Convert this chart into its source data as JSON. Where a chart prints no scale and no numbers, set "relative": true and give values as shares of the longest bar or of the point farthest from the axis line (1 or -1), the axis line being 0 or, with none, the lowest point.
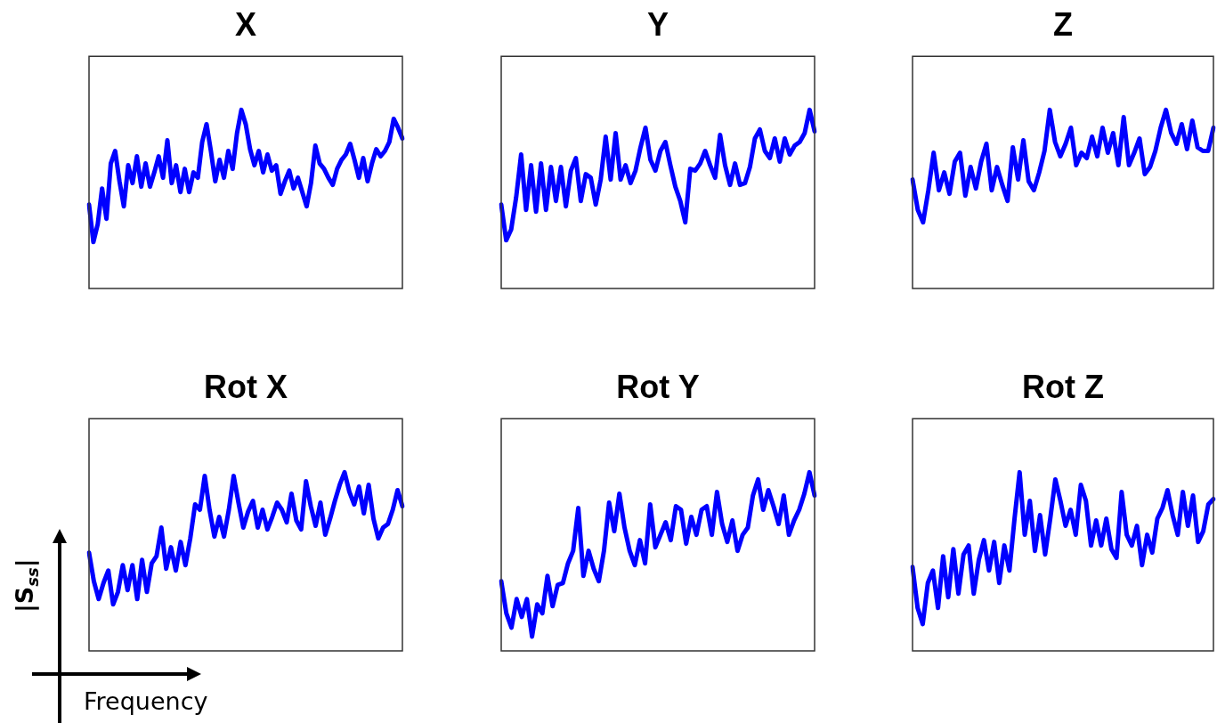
{
  "chart_data": [
    {
      "type": "line",
      "title": "X",
      "relative": true,
      "color": "#0000ff",
      "categories": [
        null,
        null,
        null,
        null,
        null,
        null,
        null,
        null,
        null,
        null,
        null,
        null,
        null,
        null,
        null,
        null,
        null,
        null,
        null,
        null,
        null,
        null,
        null,
        null,
        null,
        null,
        null,
        null,
        null,
        null,
        null,
        null,
        null,
        null,
        null,
        null,
        null,
        null,
        null,
        null,
        null,
        null,
        null,
        null,
        null,
        null,
        null,
        null,
        null,
        null,
        null,
        null,
        null,
        null,
        null,
        null,
        null,
        null,
        null,
        null,
        null,
        null,
        null,
        null,
        null,
        null,
        null,
        null,
        null,
        null,
        null,
        null,
        null
      ],
      "values": [
        0.47,
        0.26,
        0.36,
        0.56,
        0.39,
        0.7,
        0.77,
        0.6,
        0.46,
        0.69,
        0.59,
        0.74,
        0.57,
        0.7,
        0.57,
        0.65,
        0.74,
        0.62,
        0.83,
        0.59,
        0.69,
        0.54,
        0.67,
        0.54,
        0.65,
        0.62,
        0.82,
        0.92,
        0.77,
        0.6,
        0.72,
        0.62,
        0.77,
        0.67,
        0.87,
        1,
        0.92,
        0.78,
        0.69,
        0.77,
        0.65,
        0.75,
        0.66,
        0.69,
        0.53,
        0.6,
        0.66,
        0.56,
        0.62,
        0.54,
        0.46,
        0.59,
        0.8,
        0.7,
        0.67,
        0.62,
        0.58,
        0.67,
        0.72,
        0.75,
        0.81,
        0.72,
        0.62,
        0.73,
        0.6,
        0.7,
        0.78,
        0.74,
        0.77,
        0.82,
        0.95,
        0.9,
        0.84
      ]
    },
    {
      "type": "line",
      "title": "Y",
      "relative": true,
      "color": "#0000ff",
      "categories": [
        null,
        null,
        null,
        null,
        null,
        null,
        null,
        null,
        null,
        null,
        null,
        null,
        null,
        null,
        null,
        null,
        null,
        null,
        null,
        null,
        null,
        null,
        null,
        null,
        null,
        null,
        null,
        null,
        null,
        null,
        null,
        null,
        null,
        null,
        null,
        null,
        null,
        null,
        null,
        null,
        null,
        null,
        null,
        null,
        null,
        null,
        null,
        null,
        null,
        null,
        null,
        null,
        null,
        null,
        null,
        null,
        null,
        null,
        null,
        null,
        null,
        null,
        null,
        null
      ],
      "values": [
        0.47,
        0.27,
        0.33,
        0.51,
        0.75,
        0.44,
        0.69,
        0.43,
        0.7,
        0.44,
        0.68,
        0.49,
        0.68,
        0.46,
        0.66,
        0.73,
        0.49,
        0.64,
        0.62,
        0.47,
        0.61,
        0.85,
        0.61,
        0.87,
        0.61,
        0.69,
        0.59,
        0.66,
        0.79,
        0.9,
        0.72,
        0.66,
        0.77,
        0.82,
        0.69,
        0.57,
        0.49,
        0.37,
        0.67,
        0.66,
        0.7,
        0.77,
        0.69,
        0.62,
        0.86,
        0.69,
        0.58,
        0.7,
        0.58,
        0.59,
        0.68,
        0.84,
        0.89,
        0.77,
        0.73,
        0.84,
        0.71,
        0.84,
        0.75,
        0.8,
        0.82,
        0.87,
        1,
        0.88
      ]
    },
    {
      "type": "line",
      "title": "Z",
      "relative": true,
      "color": "#0000ff",
      "categories": [
        null,
        null,
        null,
        null,
        null,
        null,
        null,
        null,
        null,
        null,
        null,
        null,
        null,
        null,
        null,
        null,
        null,
        null,
        null,
        null,
        null,
        null,
        null,
        null,
        null,
        null,
        null,
        null,
        null,
        null,
        null,
        null,
        null,
        null,
        null,
        null,
        null,
        null,
        null,
        null,
        null,
        null,
        null,
        null,
        null,
        null,
        null,
        null,
        null,
        null,
        null,
        null,
        null,
        null,
        null,
        null,
        null,
        null
      ],
      "values": [
        0.61,
        0.44,
        0.37,
        0.55,
        0.76,
        0.55,
        0.65,
        0.53,
        0.71,
        0.76,
        0.52,
        0.68,
        0.56,
        0.71,
        0.81,
        0.55,
        0.68,
        0.58,
        0.49,
        0.79,
        0.61,
        0.83,
        0.6,
        0.55,
        0.65,
        0.77,
        1,
        0.82,
        0.74,
        0.81,
        0.9,
        0.69,
        0.76,
        0.73,
        0.85,
        0.74,
        0.9,
        0.76,
        0.87,
        0.69,
        0.96,
        0.69,
        0.76,
        0.84,
        0.64,
        0.68,
        0.77,
        0.9,
        1,
        0.87,
        0.81,
        0.92,
        0.78,
        0.94,
        0.79,
        0.77,
        0.77,
        0.9
      ]
    },
    {
      "type": "line",
      "title": "Rot X",
      "relative": true,
      "color": "#0000ff",
      "xlabel": "Frequency",
      "ylabel": "|S$_{ss}$|",
      "categories": [
        null,
        null,
        null,
        null,
        null,
        null,
        null,
        null,
        null,
        null,
        null,
        null,
        null,
        null,
        null,
        null,
        null,
        null,
        null,
        null,
        null,
        null,
        null,
        null,
        null,
        null,
        null,
        null,
        null,
        null,
        null,
        null,
        null,
        null,
        null,
        null,
        null,
        null,
        null,
        null,
        null,
        null,
        null,
        null,
        null,
        null,
        null,
        null,
        null,
        null,
        null,
        null,
        null,
        null,
        null,
        null,
        null,
        null,
        null,
        null,
        null,
        null,
        null,
        null,
        null,
        null
      ],
      "values": [
        0.55,
        0.39,
        0.29,
        0.38,
        0.45,
        0.26,
        0.33,
        0.48,
        0.34,
        0.48,
        0.29,
        0.51,
        0.33,
        0.49,
        0.53,
        0.69,
        0.46,
        0.58,
        0.45,
        0.61,
        0.48,
        0.63,
        0.82,
        0.79,
        0.98,
        0.79,
        0.64,
        0.75,
        0.64,
        0.79,
        0.98,
        0.83,
        0.69,
        0.78,
        0.84,
        0.69,
        0.79,
        0.68,
        0.75,
        0.83,
        0.79,
        0.72,
        0.88,
        0.73,
        0.68,
        0.95,
        0.81,
        0.7,
        0.83,
        0.65,
        0.74,
        0.84,
        0.93,
        1,
        0.89,
        0.82,
        0.92,
        0.77,
        0.93,
        0.74,
        0.63,
        0.69,
        0.71,
        0.79,
        0.9,
        0.81
      ]
    },
    {
      "type": "line",
      "title": "Rot Y",
      "relative": true,
      "color": "#0000ff",
      "categories": [
        null,
        null,
        null,
        null,
        null,
        null,
        null,
        null,
        null,
        null,
        null,
        null,
        null,
        null,
        null,
        null,
        null,
        null,
        null,
        null,
        null,
        null,
        null,
        null,
        null,
        null,
        null,
        null,
        null,
        null,
        null,
        null,
        null,
        null,
        null,
        null,
        null,
        null,
        null,
        null,
        null,
        null,
        null,
        null,
        null,
        null,
        null,
        null,
        null,
        null,
        null,
        null,
        null,
        null,
        null,
        null,
        null,
        null,
        null,
        null,
        null,
        null
      ],
      "values": [
        0.39,
        0.21,
        0.13,
        0.29,
        0.19,
        0.29,
        0.08,
        0.26,
        0.21,
        0.42,
        0.25,
        0.37,
        0.38,
        0.49,
        0.56,
        0.8,
        0.42,
        0.56,
        0.46,
        0.39,
        0.56,
        0.83,
        0.67,
        0.88,
        0.69,
        0.56,
        0.48,
        0.62,
        0.49,
        0.82,
        0.58,
        0.65,
        0.72,
        0.62,
        0.81,
        0.79,
        0.6,
        0.75,
        0.65,
        0.79,
        0.81,
        0.65,
        0.89,
        0.71,
        0.61,
        0.73,
        0.56,
        0.65,
        0.69,
        0.87,
        0.96,
        0.79,
        0.9,
        0.81,
        0.71,
        0.87,
        0.65,
        0.73,
        0.79,
        0.88,
        1,
        0.87
      ]
    },
    {
      "type": "line",
      "title": "Rot Z",
      "relative": true,
      "color": "#0000ff",
      "categories": [
        null,
        null,
        null,
        null,
        null,
        null,
        null,
        null,
        null,
        null,
        null,
        null,
        null,
        null,
        null,
        null,
        null,
        null,
        null,
        null,
        null,
        null,
        null,
        null,
        null,
        null,
        null,
        null,
        null,
        null,
        null,
        null,
        null,
        null,
        null,
        null,
        null,
        null,
        null,
        null,
        null,
        null,
        null,
        null,
        null,
        null,
        null,
        null,
        null,
        null,
        null,
        null,
        null,
        null,
        null,
        null,
        null,
        null,
        null,
        null
      ],
      "values": [
        0.47,
        0.24,
        0.15,
        0.38,
        0.45,
        0.24,
        0.53,
        0.3,
        0.57,
        0.32,
        0.54,
        0.59,
        0.32,
        0.51,
        0.62,
        0.45,
        0.61,
        0.38,
        0.59,
        0.45,
        0.74,
        1,
        0.65,
        0.84,
        0.56,
        0.76,
        0.54,
        0.74,
        0.96,
        0.84,
        0.7,
        0.79,
        0.65,
        0.93,
        0.84,
        0.59,
        0.73,
        0.59,
        0.74,
        0.57,
        0.52,
        0.89,
        0.65,
        0.59,
        0.7,
        0.48,
        0.65,
        0.55,
        0.74,
        0.8,
        0.9,
        0.76,
        0.65,
        0.89,
        0.7,
        0.87,
        0.61,
        0.67,
        0.82,
        0.85
      ]
    }
  ]
}
